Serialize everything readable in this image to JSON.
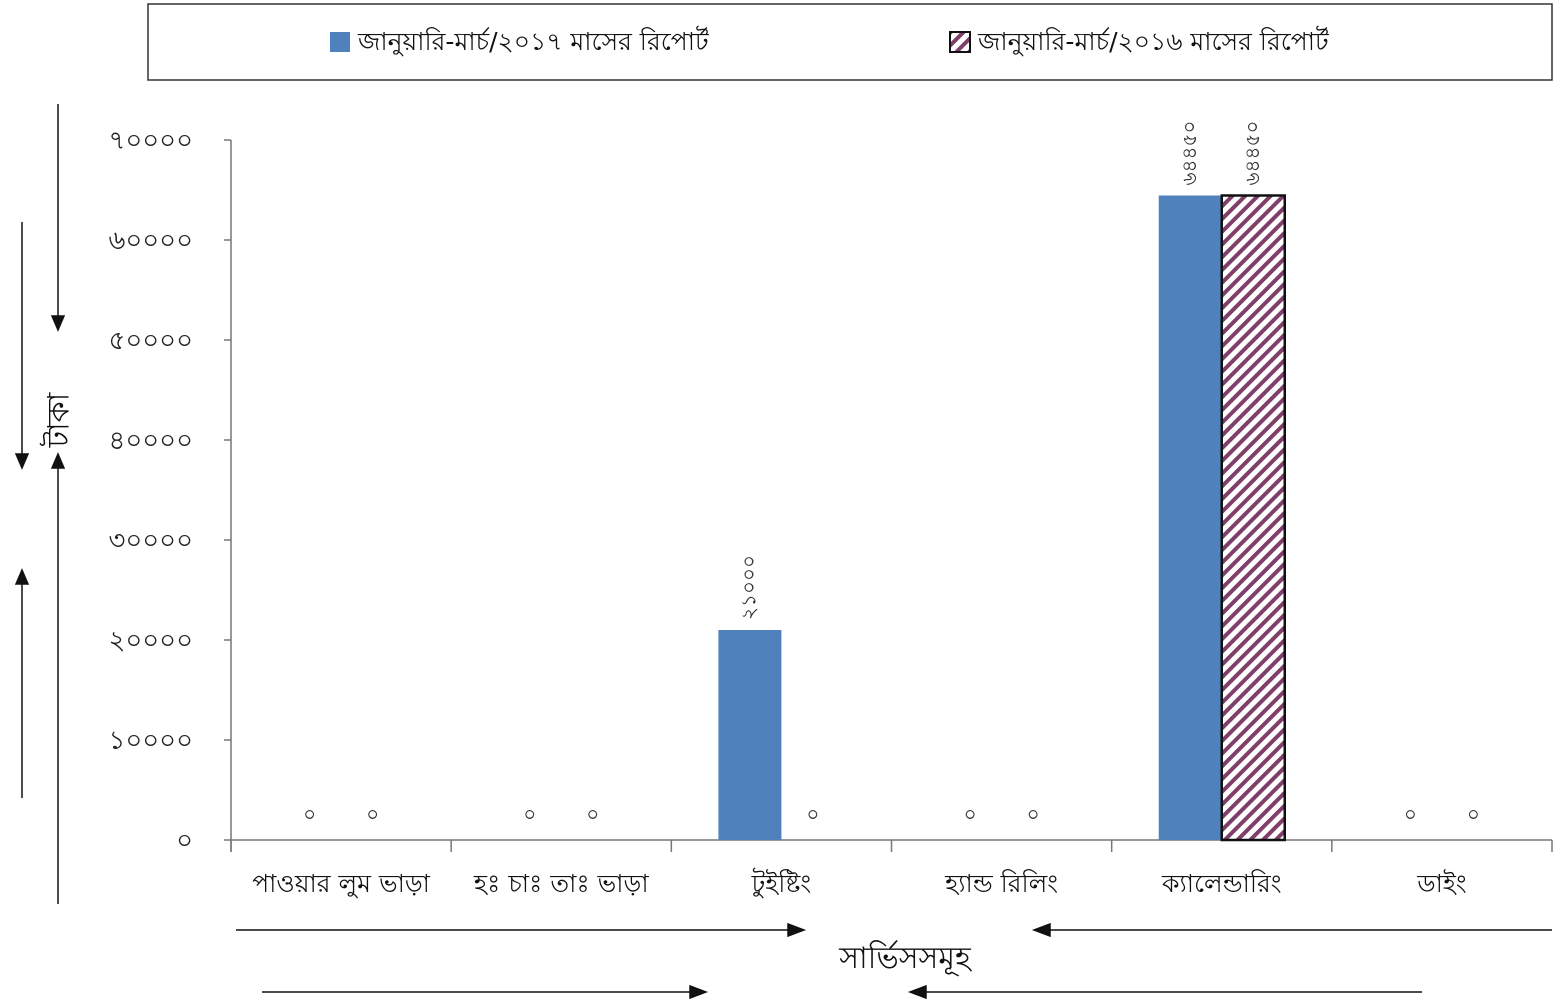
{
  "chart_data": {
    "type": "bar",
    "categories": [
      "পাওয়ার লুম ভাড়া",
      "হঃ চাঃ তাঃ ভাড়া",
      "টুইষ্টিং",
      "হ্যান্ড রিলিং",
      "ক্যালেন্ডারিং",
      "ডাইং"
    ],
    "series": [
      {
        "name": "জানুয়ারি-মার্চ/২০১৭ মাসের রিপোর্ট",
        "color": "#4f81bd",
        "pattern": "solid",
        "values": [
          0,
          0,
          21000,
          0,
          64450,
          0
        ],
        "labels": [
          "০",
          "০",
          "২১০০০",
          "০",
          "৬৪৪৫০",
          "০"
        ]
      },
      {
        "name": "জানুয়ারি-মার্চ/২০১৬ মাসের রিপোর্ট",
        "color": "#7f3f6a",
        "pattern": "diagonal-hatch",
        "values": [
          0,
          0,
          0,
          0,
          64450,
          0
        ],
        "labels": [
          "০",
          "০",
          "০",
          "০",
          "৬৪৪৫০",
          "০"
        ]
      }
    ],
    "yticks": [
      0,
      10000,
      20000,
      30000,
      40000,
      50000,
      60000,
      70000
    ],
    "ytick_labels": [
      "০",
      "১০০০০",
      "২০০০০",
      "৩০০০০",
      "৪০০০০",
      "৫০০০০",
      "৬০০০০",
      "৭০০০০"
    ],
    "ylim": [
      0,
      70000
    ],
    "xlabel": "সার্ভিসসমূহ",
    "ylabel": "টাকা",
    "legend_position": "top",
    "grid": false
  }
}
